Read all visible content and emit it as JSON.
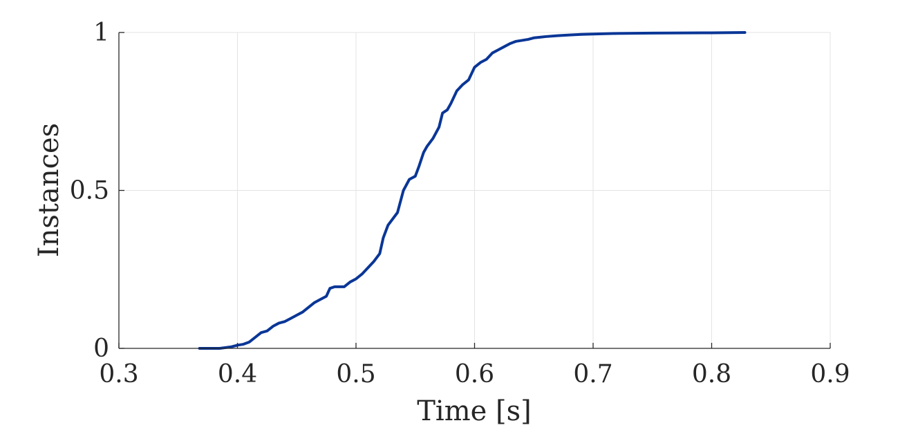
{
  "chart_data": {
    "type": "line",
    "xlabel": "Time [s]",
    "ylabel": "Instances",
    "xlim": [
      0.3,
      0.9
    ],
    "ylim": [
      0,
      1
    ],
    "xticks": [
      0.3,
      0.4,
      0.5,
      0.6,
      0.7,
      0.8,
      0.9
    ],
    "xtick_labels": [
      "0.3",
      "0.4",
      "0.5",
      "0.6",
      "0.7",
      "0.8",
      "0.9"
    ],
    "yticks": [
      0,
      0.5,
      1
    ],
    "ytick_labels": [
      "0",
      "0.5",
      "1"
    ],
    "grid": true,
    "colors": {
      "line": "#0a3696",
      "grid": "#e3e3e3",
      "axis": "#262626",
      "text": "#262626"
    },
    "series": [
      {
        "x": [
          0.368,
          0.385,
          0.395,
          0.4,
          0.405,
          0.41,
          0.415,
          0.42,
          0.425,
          0.43,
          0.435,
          0.44,
          0.445,
          0.45,
          0.455,
          0.46,
          0.465,
          0.47,
          0.475,
          0.478,
          0.482,
          0.49,
          0.495,
          0.5,
          0.505,
          0.51,
          0.515,
          0.52,
          0.523,
          0.527,
          0.53,
          0.535,
          0.54,
          0.545,
          0.55,
          0.553,
          0.557,
          0.56,
          0.565,
          0.57,
          0.573,
          0.577,
          0.58,
          0.585,
          0.59,
          0.595,
          0.6,
          0.605,
          0.61,
          0.615,
          0.62,
          0.625,
          0.63,
          0.635,
          0.64,
          0.645,
          0.65,
          0.655,
          0.66,
          0.67,
          0.68,
          0.69,
          0.7,
          0.72,
          0.75,
          0.8,
          0.828
        ],
        "y": [
          0.0,
          0.0,
          0.005,
          0.01,
          0.013,
          0.02,
          0.035,
          0.05,
          0.055,
          0.07,
          0.08,
          0.085,
          0.095,
          0.105,
          0.115,
          0.13,
          0.145,
          0.155,
          0.165,
          0.19,
          0.195,
          0.195,
          0.21,
          0.22,
          0.235,
          0.255,
          0.275,
          0.3,
          0.35,
          0.39,
          0.405,
          0.43,
          0.5,
          0.535,
          0.545,
          0.575,
          0.62,
          0.64,
          0.665,
          0.7,
          0.745,
          0.755,
          0.775,
          0.815,
          0.835,
          0.85,
          0.89,
          0.905,
          0.915,
          0.935,
          0.945,
          0.955,
          0.965,
          0.972,
          0.975,
          0.978,
          0.983,
          0.985,
          0.987,
          0.99,
          0.992,
          0.994,
          0.995,
          0.997,
          0.998,
          0.999,
          1.0
        ]
      }
    ]
  }
}
